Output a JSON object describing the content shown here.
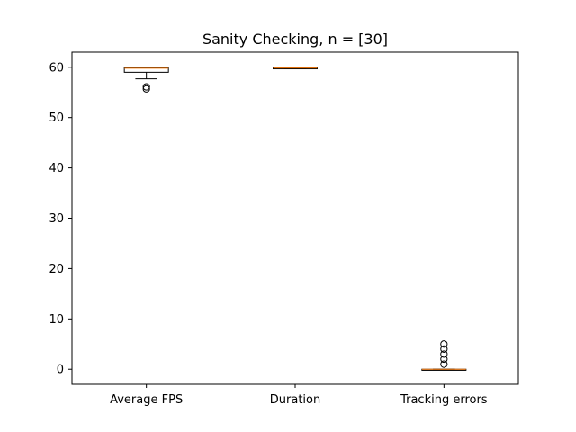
{
  "chart_data": {
    "type": "box",
    "title": "Sanity Checking, n = [30]",
    "xlabel": "",
    "ylabel": "",
    "categories": [
      "Average FPS",
      "Duration",
      "Tracking errors"
    ],
    "ylim": [
      -3,
      63
    ],
    "yticks": [
      0,
      10,
      20,
      30,
      40,
      50,
      60
    ],
    "grid": false,
    "boxes": [
      {
        "whisker_low": 57.7,
        "q1": 59.0,
        "median": 59.8,
        "q3": 59.9,
        "whisker_high": 59.9,
        "outliers": [
          55.7,
          56.1
        ]
      },
      {
        "whisker_low": 59.7,
        "q1": 59.8,
        "median": 59.85,
        "q3": 59.9,
        "whisker_high": 59.95,
        "outliers": []
      },
      {
        "whisker_low": 0,
        "q1": 0,
        "median": 0,
        "q3": 0,
        "whisker_high": 0,
        "outliers": [
          1,
          2,
          3,
          4,
          5
        ]
      }
    ],
    "colors": {
      "box": "#000000",
      "median": "#ff7f0e"
    }
  }
}
